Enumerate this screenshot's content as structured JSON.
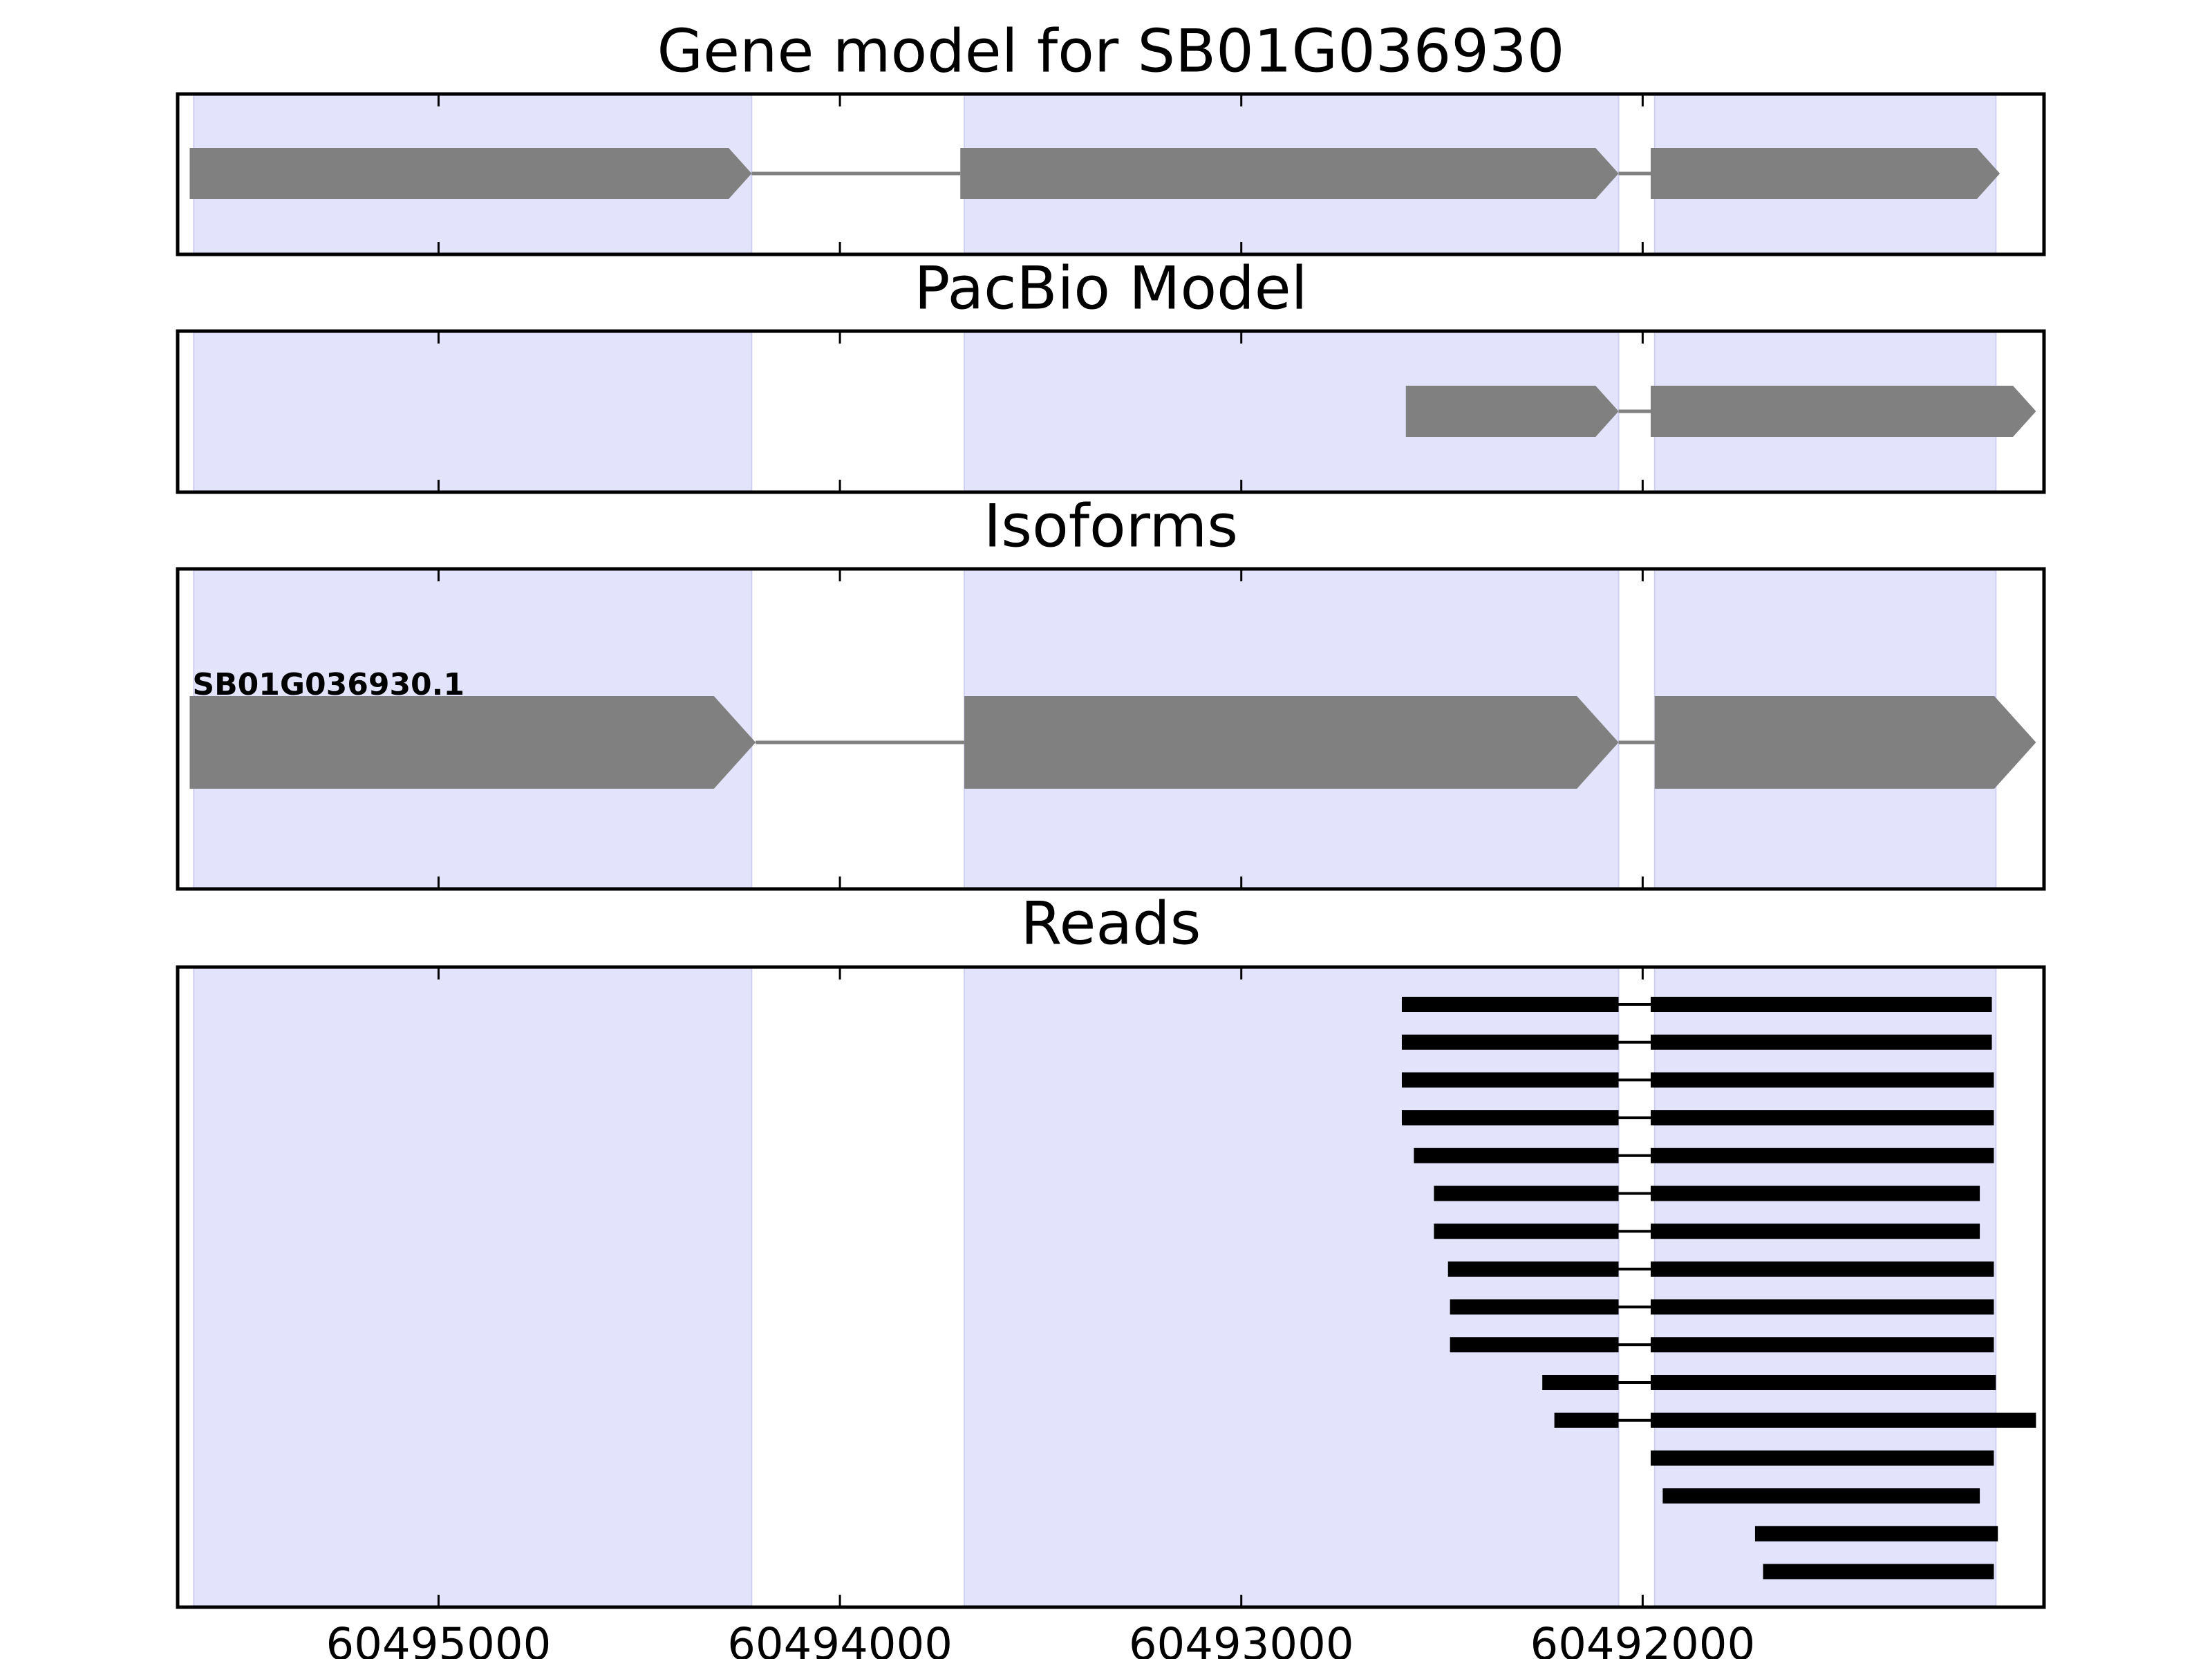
{
  "chart_data": {
    "type": "gene_track",
    "x_direction": "reversed",
    "xlim": [
      60495650,
      60491000
    ],
    "x_ticks": [
      60495000,
      60494000,
      60493000,
      60492000
    ],
    "x_tick_labels": [
      "60495000",
      "60494000",
      "60493000",
      "60492000"
    ],
    "grid": false,
    "exon_shading_color": "#e3e3fc",
    "feature_color": "#808080",
    "read_color": "#000000",
    "shaded_exons": [
      [
        60495610,
        60494220
      ],
      [
        60493690,
        60492060
      ],
      [
        60491970,
        60491120
      ]
    ],
    "panels": [
      {
        "id": "gene-model",
        "title": "Gene model for SB01G036930",
        "transcripts": [
          {
            "label": "",
            "exons": [
              [
                60495620,
                60494220
              ],
              [
                60493700,
                60492060
              ],
              [
                60491980,
                60491110
              ]
            ]
          }
        ]
      },
      {
        "id": "pacbio-model",
        "title": "PacBio Model",
        "transcripts": [
          {
            "label": "",
            "exons": [
              [
                60492590,
                60492060
              ],
              [
                60491980,
                60491020
              ]
            ]
          }
        ]
      },
      {
        "id": "isoforms",
        "title": "Isoforms",
        "transcripts": [
          {
            "label": "SB01G036930.1",
            "exons": [
              [
                60495620,
                60494210
              ],
              [
                60493690,
                60492060
              ],
              [
                60491970,
                60491020
              ]
            ]
          }
        ]
      },
      {
        "id": "reads",
        "title": "Reads",
        "reads": [
          [
            [
              60492600,
              60492060
            ],
            [
              60491980,
              60491130
            ]
          ],
          [
            [
              60492600,
              60492060
            ],
            [
              60491980,
              60491130
            ]
          ],
          [
            [
              60492600,
              60492060
            ],
            [
              60491980,
              60491125
            ]
          ],
          [
            [
              60492600,
              60492060
            ],
            [
              60491980,
              60491125
            ]
          ],
          [
            [
              60492570,
              60492060
            ],
            [
              60491980,
              60491125
            ]
          ],
          [
            [
              60492520,
              60492060
            ],
            [
              60491980,
              60491160
            ]
          ],
          [
            [
              60492520,
              60492060
            ],
            [
              60491980,
              60491160
            ]
          ],
          [
            [
              60492485,
              60492060
            ],
            [
              60491980,
              60491125
            ]
          ],
          [
            [
              60492480,
              60492060
            ],
            [
              60491980,
              60491125
            ]
          ],
          [
            [
              60492480,
              60492060
            ],
            [
              60491980,
              60491125
            ]
          ],
          [
            [
              60492250,
              60492060
            ],
            [
              60491980,
              60491120
            ]
          ],
          [
            [
              60492220,
              60492060
            ],
            [
              60491980,
              60491020
            ]
          ],
          [
            [
              60491980,
              60491125
            ]
          ],
          [
            [
              60491950,
              60491160
            ]
          ],
          [
            [
              60491720,
              60491115
            ]
          ],
          [
            [
              60491700,
              60491125
            ]
          ]
        ]
      }
    ]
  }
}
